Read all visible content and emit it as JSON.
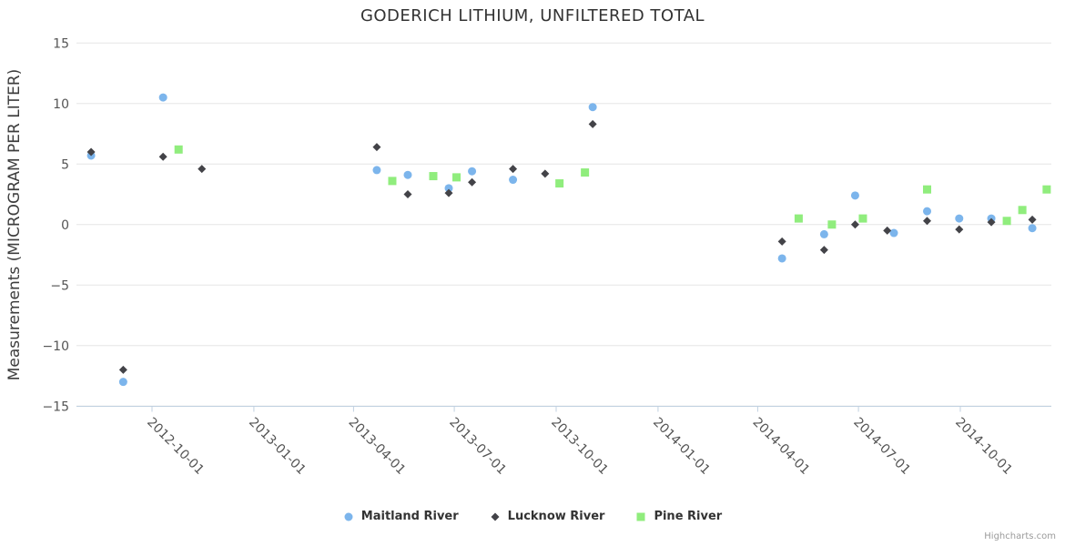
{
  "title": "GODERICH LITHIUM, UNFILTERED TOTAL",
  "credits_label": "Highcharts.com",
  "colors": {
    "title_text": "#333333",
    "axis_label_text": "#555555",
    "axis_title_text": "#3c3c3c",
    "gridline": "#e6e6e6",
    "axis_line": "#c0d0e0",
    "legend_text": "#333333",
    "credits_text": "#9a9a9a",
    "maitland_blue": "#7cb5ec",
    "lucknow_dark": "#434348",
    "pine_green": "#90ed7d"
  },
  "chart_data": {
    "type": "scatter",
    "title": "GODERICH LITHIUM, UNFILTERED TOTAL",
    "xlabel": "",
    "ylabel": "Measurements (MICROGRAM PER LITER)",
    "ylim": [
      -15,
      15
    ],
    "y_ticks": [
      15,
      10,
      5,
      0,
      -5,
      -10,
      -15
    ],
    "x_ticks": [
      "2012-10-01",
      "2013-01-01",
      "2013-04-01",
      "2013-07-01",
      "2013-10-01",
      "2014-01-01",
      "2014-04-01",
      "2014-07-01",
      "2014-10-01"
    ],
    "grid": "horizontal-only",
    "legend_position": "bottom-center",
    "series": [
      {
        "name": "Maitland River",
        "marker": "circle",
        "color": "#7cb5ec",
        "points": [
          [
            "2012-08-07",
            5.7
          ],
          [
            "2012-09-05",
            -13.0
          ],
          [
            "2012-10-11",
            10.5
          ],
          [
            "2013-04-22",
            4.5
          ],
          [
            "2013-05-20",
            4.1
          ],
          [
            "2013-06-26",
            3.0
          ],
          [
            "2013-07-17",
            4.4
          ],
          [
            "2013-08-23",
            3.7
          ],
          [
            "2013-11-03",
            9.7
          ],
          [
            "2014-04-23",
            -2.8
          ],
          [
            "2014-05-31",
            -0.8
          ],
          [
            "2014-06-28",
            2.4
          ],
          [
            "2014-08-02",
            -0.7
          ],
          [
            "2014-09-01",
            1.1
          ],
          [
            "2014-09-30",
            0.5
          ],
          [
            "2014-10-29",
            0.5
          ],
          [
            "2014-12-05",
            -0.3
          ]
        ]
      },
      {
        "name": "Lucknow River",
        "marker": "diamond",
        "color": "#434348",
        "points": [
          [
            "2012-08-07",
            6.0
          ],
          [
            "2012-09-05",
            -12.0
          ],
          [
            "2012-10-11",
            5.6
          ],
          [
            "2012-11-15",
            4.6
          ],
          [
            "2013-04-22",
            6.4
          ],
          [
            "2013-05-20",
            2.5
          ],
          [
            "2013-06-26",
            2.6
          ],
          [
            "2013-07-17",
            3.5
          ],
          [
            "2013-08-23",
            4.6
          ],
          [
            "2013-09-21",
            4.2
          ],
          [
            "2013-11-03",
            8.3
          ],
          [
            "2014-04-23",
            -1.4
          ],
          [
            "2014-05-31",
            -2.1
          ],
          [
            "2014-06-28",
            0.0
          ],
          [
            "2014-07-27",
            -0.5
          ],
          [
            "2014-09-01",
            0.3
          ],
          [
            "2014-09-30",
            -0.4
          ],
          [
            "2014-10-29",
            0.2
          ],
          [
            "2014-12-05",
            0.4
          ]
        ]
      },
      {
        "name": "Pine River",
        "marker": "square",
        "color": "#90ed7d",
        "points": [
          [
            "2012-10-25",
            6.2
          ],
          [
            "2013-05-06",
            3.6
          ],
          [
            "2013-06-12",
            4.0
          ],
          [
            "2013-07-03",
            3.9
          ],
          [
            "2013-10-04",
            3.4
          ],
          [
            "2013-10-27",
            4.3
          ],
          [
            "2014-05-08",
            0.5
          ],
          [
            "2014-06-07",
            0.0
          ],
          [
            "2014-07-05",
            0.5
          ],
          [
            "2014-09-01",
            2.9
          ],
          [
            "2014-11-12",
            0.3
          ],
          [
            "2014-11-26",
            1.2
          ],
          [
            "2014-12-18",
            2.9
          ]
        ]
      }
    ]
  }
}
